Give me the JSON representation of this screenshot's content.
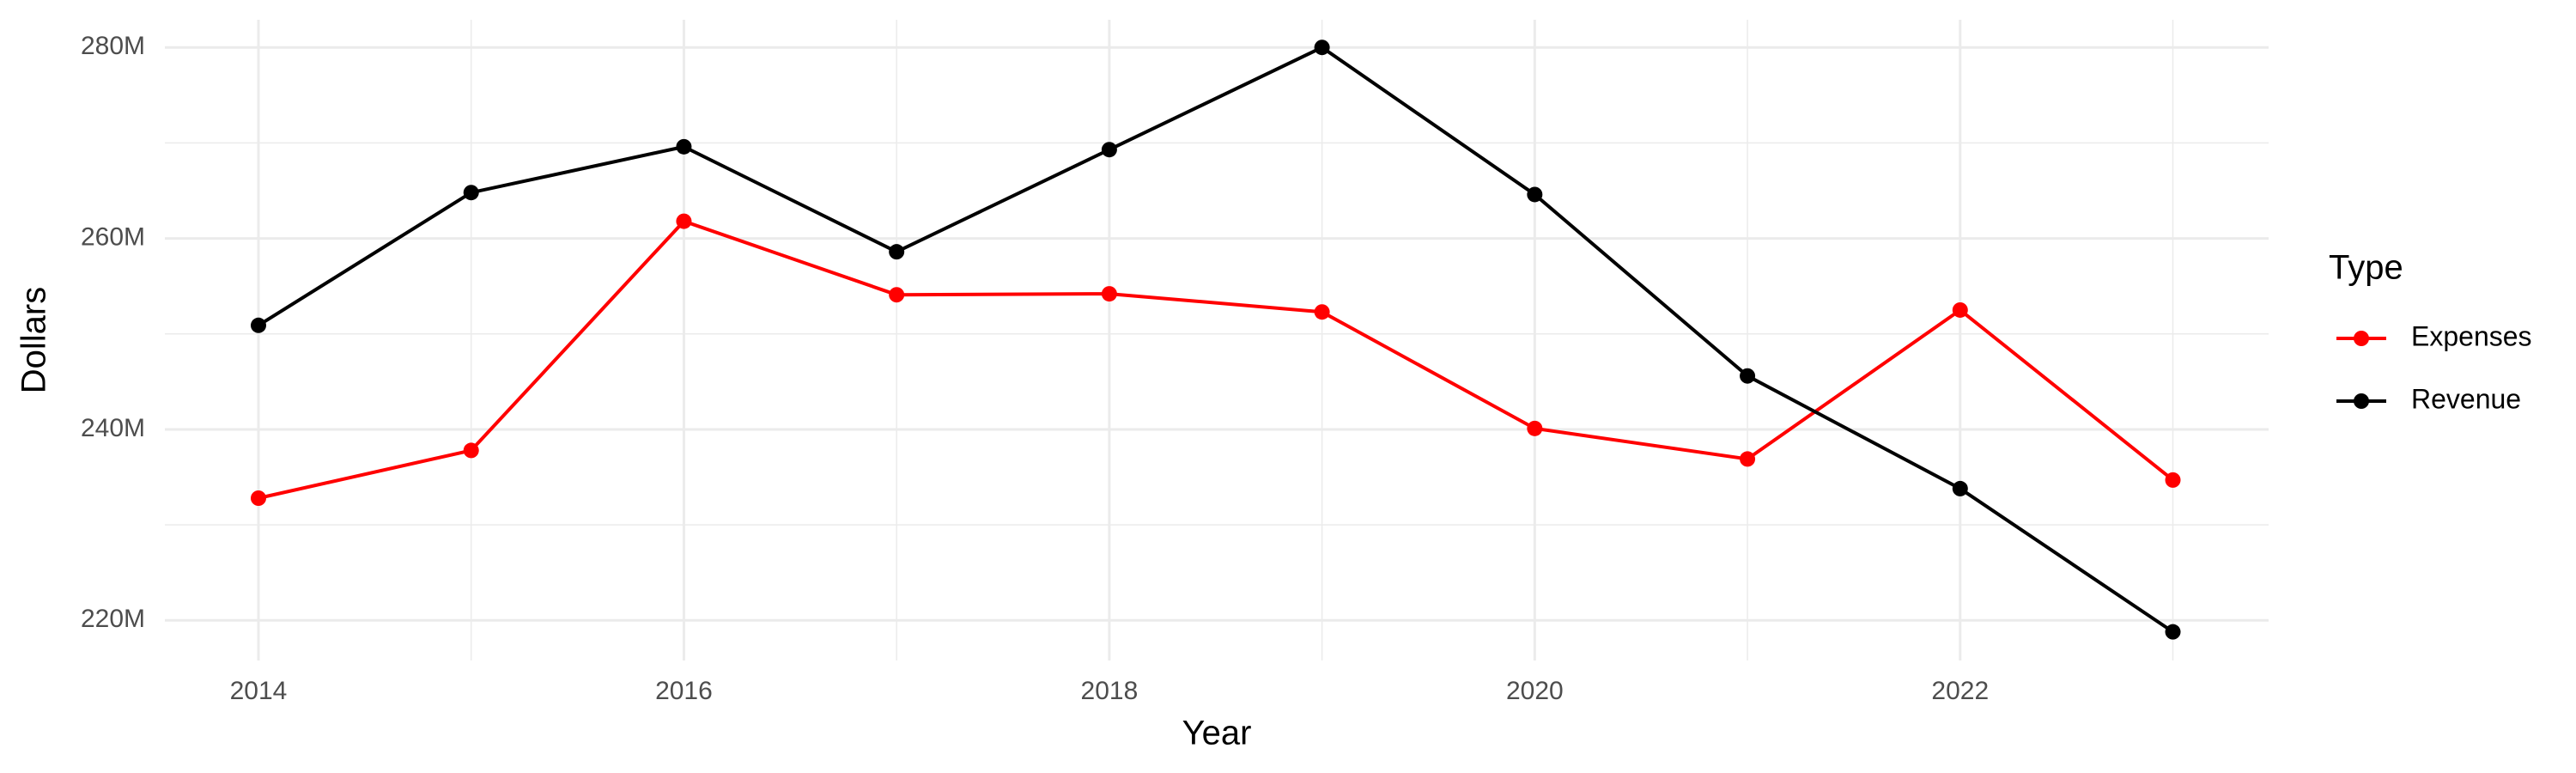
{
  "chart_data": {
    "type": "line",
    "x_label": "Year",
    "y_label": "Dollars",
    "legend_title": "Type",
    "x": [
      2014,
      2015,
      2016,
      2017,
      2018,
      2019,
      2020,
      2021,
      2022,
      2023
    ],
    "series": [
      {
        "name": "Expenses",
        "color": "#ff0000",
        "values": [
          232800000,
          237800000,
          261800000,
          254100000,
          254200000,
          252300000,
          240100000,
          236900000,
          252500000,
          234700000
        ]
      },
      {
        "name": "Revenue",
        "color": "#000000",
        "values": [
          250900000,
          264800000,
          269600000,
          258600000,
          269300000,
          280000000,
          264600000,
          245600000,
          233800000,
          218800000
        ]
      }
    ],
    "xlim": [
      2013.56,
      2023.45
    ],
    "xticks": [
      2014,
      2016,
      2018,
      2020,
      2022
    ],
    "x_minor_ticks": [
      2015,
      2017,
      2019,
      2021,
      2023
    ],
    "ylim": [
      215800000,
      282900000
    ],
    "yticks": [
      {
        "value": 220000000,
        "label": "220M"
      },
      {
        "value": 240000000,
        "label": "240M"
      },
      {
        "value": 260000000,
        "label": "260M"
      },
      {
        "value": 280000000,
        "label": "280M"
      }
    ],
    "y_minor_ticks": [
      230000000,
      250000000,
      270000000
    ],
    "grid": true,
    "legend": "right"
  }
}
